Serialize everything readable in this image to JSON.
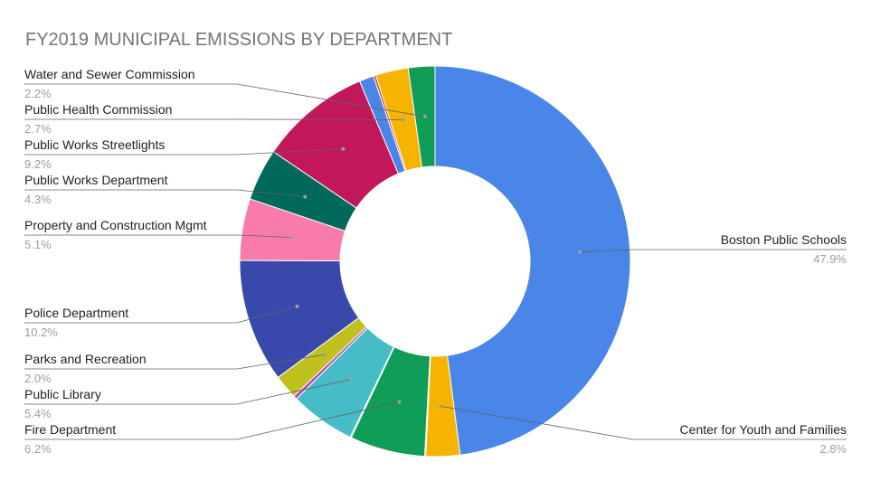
{
  "chart_data": {
    "type": "pie",
    "donut": true,
    "title": "FY2019 MUNICIPAL EMISSIONS BY DEPARTMENT",
    "legend": "none",
    "slices": [
      {
        "label": "Boston Public Schools",
        "value": 47.9,
        "pct_label": "47.9%",
        "color": "#4a86e8",
        "annotated": true
      },
      {
        "label": "Center for Youth and Families",
        "value": 2.8,
        "pct_label": "2.8%",
        "color": "#f4b400",
        "annotated": true
      },
      {
        "label": "",
        "value": 0.1,
        "pct_label": "",
        "color": "#e8710a",
        "annotated": false
      },
      {
        "label": "Fire Department",
        "value": 6.2,
        "pct_label": "6.2%",
        "color": "#0f9d58",
        "annotated": true
      },
      {
        "label": "",
        "value": 0.1,
        "pct_label": "",
        "color": "#8d6e63",
        "annotated": false
      },
      {
        "label": "Public Library",
        "value": 5.4,
        "pct_label": "5.4%",
        "color": "#46bdc6",
        "annotated": true
      },
      {
        "label": "",
        "value": 0.3,
        "pct_label": "",
        "color": "#ab47bc",
        "annotated": false
      },
      {
        "label": "Parks and Recreation",
        "value": 2.0,
        "pct_label": "2.0%",
        "color": "#c0c01f",
        "annotated": true
      },
      {
        "label": "Police Department",
        "value": 10.2,
        "pct_label": "10.2%",
        "color": "#3949ab",
        "annotated": true
      },
      {
        "label": "Property and Construction Mgmt",
        "value": 5.1,
        "pct_label": "5.1%",
        "color": "#f77cac",
        "annotated": true
      },
      {
        "label": "Public Works Department",
        "value": 4.3,
        "pct_label": "4.3%",
        "color": "#00695c",
        "annotated": true
      },
      {
        "label": "Public Works Streetlights",
        "value": 9.2,
        "pct_label": "9.2%",
        "color": "#c2185b",
        "annotated": true
      },
      {
        "label": "",
        "value": 1.2,
        "pct_label": "",
        "color": "#4a86e8",
        "annotated": false
      },
      {
        "label": "",
        "value": 0.2,
        "pct_label": "",
        "color": "#db4437",
        "annotated": false
      },
      {
        "label": "Public Health Commission",
        "value": 2.7,
        "pct_label": "2.7%",
        "color": "#f4b400",
        "annotated": true
      },
      {
        "label": "Water and Sewer Commission",
        "value": 2.2,
        "pct_label": "2.2%",
        "color": "#0f9d58",
        "annotated": true
      }
    ]
  }
}
